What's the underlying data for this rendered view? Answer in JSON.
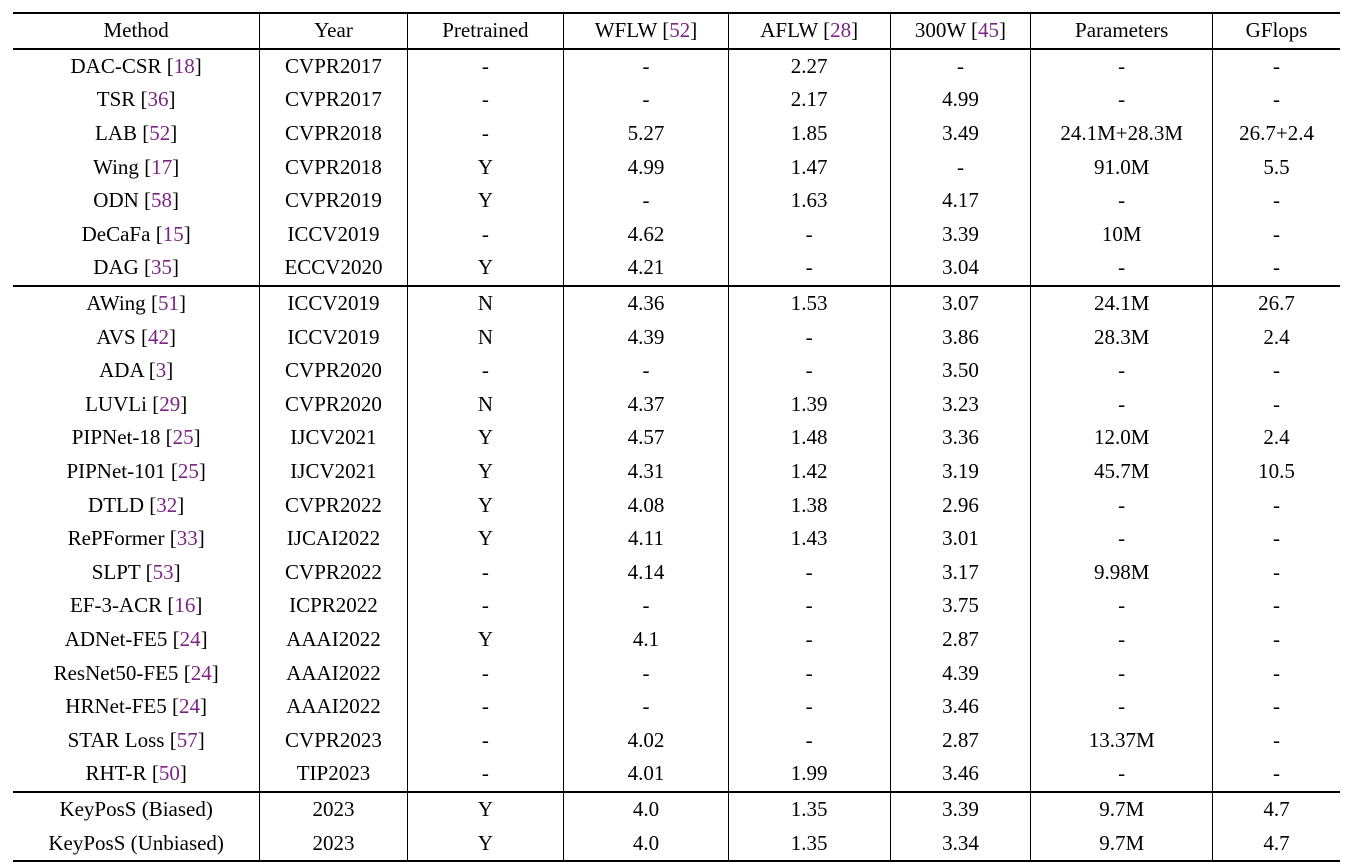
{
  "colors": {
    "citation_link": "#7C2483",
    "text": "#000000",
    "rule": "#000000",
    "background": "#ffffff"
  },
  "table": {
    "header": [
      {
        "label": "Method",
        "cite": null
      },
      {
        "label": "Year",
        "cite": null
      },
      {
        "label": "Pretrained",
        "cite": null
      },
      {
        "label": "WFLW",
        "cite": "52"
      },
      {
        "label": "AFLW",
        "cite": "28"
      },
      {
        "label": "300W",
        "cite": "45"
      },
      {
        "label": "Parameters",
        "cite": null
      },
      {
        "label": "GFlops",
        "cite": null
      }
    ],
    "groups": [
      {
        "rows": [
          {
            "method": "DAC-CSR",
            "cite": "18",
            "year": "CVPR2017",
            "pretrained": "-",
            "wflw": "-",
            "aflw": "2.27",
            "w300": "-",
            "params": "-",
            "gflops": "-",
            "bold": []
          },
          {
            "method": "TSR",
            "cite": "36",
            "year": "CVPR2017",
            "pretrained": "-",
            "wflw": "-",
            "aflw": "2.17",
            "w300": "4.99",
            "params": "-",
            "gflops": "-",
            "bold": []
          },
          {
            "method": "LAB",
            "cite": "52",
            "year": "CVPR2018",
            "pretrained": "-",
            "wflw": "5.27",
            "aflw": "1.85",
            "w300": "3.49",
            "params": "24.1M+28.3M",
            "gflops": "26.7+2.4",
            "bold": []
          },
          {
            "method": "Wing",
            "cite": "17",
            "year": "CVPR2018",
            "pretrained": "Y",
            "wflw": "4.99",
            "aflw": "1.47",
            "w300": "-",
            "params": "91.0M",
            "gflops": "5.5",
            "bold": []
          },
          {
            "method": "ODN",
            "cite": "58",
            "year": "CVPR2019",
            "pretrained": "Y",
            "wflw": "-",
            "aflw": "1.63",
            "w300": "4.17",
            "params": "-",
            "gflops": "-",
            "bold": []
          },
          {
            "method": "DeCaFa",
            "cite": "15",
            "year": "ICCV2019",
            "pretrained": "-",
            "wflw": "4.62",
            "aflw": "-",
            "w300": "3.39",
            "params": "10M",
            "gflops": "-",
            "bold": []
          },
          {
            "method": "DAG",
            "cite": "35",
            "year": "ECCV2020",
            "pretrained": "Y",
            "wflw": "4.21",
            "aflw": "-",
            "w300": "3.04",
            "params": "-",
            "gflops": "-",
            "bold": []
          }
        ]
      },
      {
        "rows": [
          {
            "method": "AWing",
            "cite": "51",
            "year": "ICCV2019",
            "pretrained": "N",
            "wflw": "4.36",
            "aflw": "1.53",
            "w300": "3.07",
            "params": "24.1M",
            "gflops": "26.7",
            "bold": []
          },
          {
            "method": "AVS",
            "cite": "42",
            "year": "ICCV2019",
            "pretrained": "N",
            "wflw": "4.39",
            "aflw": "-",
            "w300": "3.86",
            "params": "28.3M",
            "gflops": "2.4",
            "bold": []
          },
          {
            "method": "ADA",
            "cite": "3",
            "year": "CVPR2020",
            "pretrained": "-",
            "wflw": "-",
            "aflw": "-",
            "w300": "3.50",
            "params": "-",
            "gflops": "-",
            "bold": []
          },
          {
            "method": "LUVLi",
            "cite": "29",
            "year": "CVPR2020",
            "pretrained": "N",
            "wflw": "4.37",
            "aflw": "1.39",
            "w300": "3.23",
            "params": "-",
            "gflops": "-",
            "bold": []
          },
          {
            "method": "PIPNet-18",
            "cite": "25",
            "year": "IJCV2021",
            "pretrained": "Y",
            "wflw": "4.57",
            "aflw": "1.48",
            "w300": "3.36",
            "params": "12.0M",
            "gflops": "2.4",
            "bold": []
          },
          {
            "method": "PIPNet-101",
            "cite": "25",
            "year": "IJCV2021",
            "pretrained": "Y",
            "wflw": "4.31",
            "aflw": "1.42",
            "w300": "3.19",
            "params": "45.7M",
            "gflops": "10.5",
            "bold": []
          },
          {
            "method": "DTLD",
            "cite": "32",
            "year": "CVPR2022",
            "pretrained": "Y",
            "wflw": "4.08",
            "aflw": "1.38",
            "w300": "2.96",
            "params": "-",
            "gflops": "-",
            "bold": [
              "w300"
            ]
          },
          {
            "method": "RePFormer",
            "cite": "33",
            "year": "IJCAI2022",
            "pretrained": "Y",
            "wflw": "4.11",
            "aflw": "1.43",
            "w300": "3.01",
            "params": "-",
            "gflops": "-",
            "bold": []
          },
          {
            "method": "SLPT",
            "cite": "53",
            "year": "CVPR2022",
            "pretrained": "-",
            "wflw": "4.14",
            "aflw": "-",
            "w300": "3.17",
            "params": "9.98M",
            "gflops": "-",
            "bold": []
          },
          {
            "method": "EF-3-ACR",
            "cite": "16",
            "year": "ICPR2022",
            "pretrained": "-",
            "wflw": "-",
            "aflw": "-",
            "w300": "3.75",
            "params": "-",
            "gflops": "-",
            "bold": []
          },
          {
            "method": "ADNet-FE5",
            "cite": "24",
            "year": "AAAI2022",
            "pretrained": "Y",
            "wflw": "4.1",
            "aflw": "-",
            "w300": "2.87",
            "params": "-",
            "gflops": "-",
            "bold": []
          },
          {
            "method": "ResNet50-FE5",
            "cite": "24",
            "year": "AAAI2022",
            "pretrained": "-",
            "wflw": "-",
            "aflw": "-",
            "w300": "4.39",
            "params": "-",
            "gflops": "-",
            "bold": []
          },
          {
            "method": "HRNet-FE5",
            "cite": "24",
            "year": "AAAI2022",
            "pretrained": "-",
            "wflw": "-",
            "aflw": "-",
            "w300": "3.46",
            "params": "-",
            "gflops": "-",
            "bold": []
          },
          {
            "method": "STAR Loss",
            "cite": "57",
            "year": "CVPR2023",
            "pretrained": "-",
            "wflw": "4.02",
            "aflw": "-",
            "w300": "2.87",
            "params": "13.37M",
            "gflops": "-",
            "bold": []
          },
          {
            "method": "RHT-R",
            "cite": "50",
            "year": "TIP2023",
            "pretrained": "-",
            "wflw": "4.01",
            "aflw": "1.99",
            "w300": "3.46",
            "params": "-",
            "gflops": "-",
            "bold": []
          }
        ]
      },
      {
        "rows": [
          {
            "method": "KeyPosS (Biased)",
            "cite": null,
            "year": "2023",
            "pretrained": "Y",
            "wflw": "4.0",
            "aflw": "1.35",
            "w300": "3.39",
            "params": "9.7M",
            "gflops": "4.7",
            "bold": [
              "wflw",
              "aflw"
            ]
          },
          {
            "method": "KeyPosS (Unbiased)",
            "cite": null,
            "year": "2023",
            "pretrained": "Y",
            "wflw": "4.0",
            "aflw": "1.35",
            "w300": "3.34",
            "params": "9.7M",
            "gflops": "4.7",
            "bold": [
              "wflw",
              "aflw"
            ]
          }
        ]
      }
    ]
  }
}
